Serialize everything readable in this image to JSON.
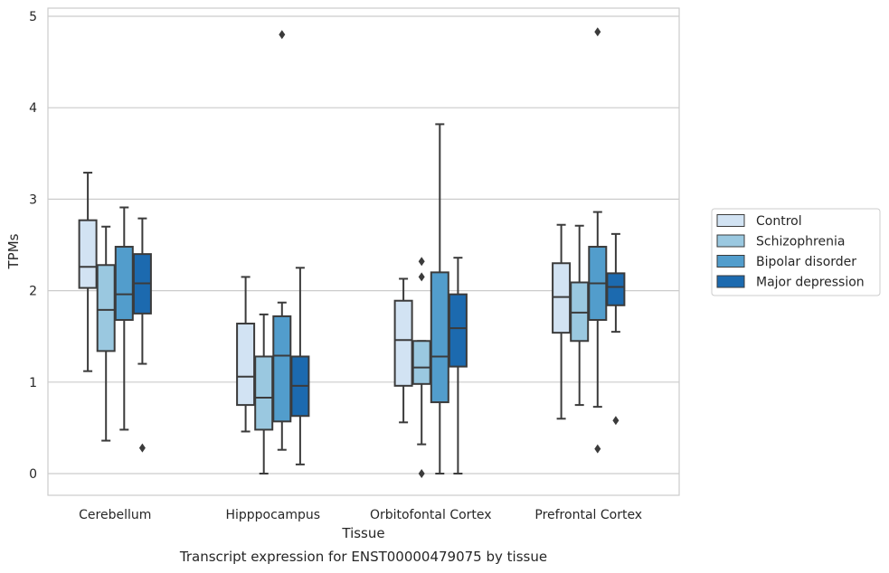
{
  "chart_data": {
    "type": "box",
    "caption": "Transcript expression for ENST00000479075 by tissue",
    "xlabel": "Tissue",
    "ylabel": "TPMs",
    "ylim": [
      -0.23,
      5.1
    ],
    "yticks": [
      0,
      1,
      2,
      3,
      4,
      5
    ],
    "grid": true,
    "legend_position": "right",
    "categories": [
      "Cerebellum",
      "Hipppocampus",
      "Orbitofontal Cortex",
      "Prefrontal Cortex"
    ],
    "series": [
      {
        "name": "Control",
        "color": "#d2e3f3",
        "boxes": [
          {
            "whisker_low": 1.12,
            "q1": 2.03,
            "median": 2.26,
            "q3": 2.77,
            "whisker_high": 3.29,
            "outliers": []
          },
          {
            "whisker_low": 0.46,
            "q1": 0.75,
            "median": 1.06,
            "q3": 1.64,
            "whisker_high": 2.15,
            "outliers": []
          },
          {
            "whisker_low": 0.56,
            "q1": 0.96,
            "median": 1.46,
            "q3": 1.89,
            "whisker_high": 2.13,
            "outliers": []
          },
          {
            "whisker_low": 0.6,
            "q1": 1.54,
            "median": 1.93,
            "q3": 2.3,
            "whisker_high": 2.72,
            "outliers": []
          }
        ]
      },
      {
        "name": "Schizophrenia",
        "color": "#9ac8e0",
        "boxes": [
          {
            "whisker_low": 0.36,
            "q1": 1.34,
            "median": 1.79,
            "q3": 2.28,
            "whisker_high": 2.7,
            "outliers": []
          },
          {
            "whisker_low": 0.0,
            "q1": 0.48,
            "median": 0.83,
            "q3": 1.28,
            "whisker_high": 1.74,
            "outliers": []
          },
          {
            "whisker_low": 0.32,
            "q1": 0.98,
            "median": 1.16,
            "q3": 1.45,
            "whisker_high": 1.45,
            "outliers": [
              2.32,
              2.15,
              0.0
            ]
          },
          {
            "whisker_low": 0.75,
            "q1": 1.45,
            "median": 1.76,
            "q3": 2.09,
            "whisker_high": 2.71,
            "outliers": []
          }
        ]
      },
      {
        "name": "Bipolar disorder",
        "color": "#529dcc",
        "boxes": [
          {
            "whisker_low": 0.48,
            "q1": 1.68,
            "median": 1.96,
            "q3": 2.48,
            "whisker_high": 2.91,
            "outliers": []
          },
          {
            "whisker_low": 0.26,
            "q1": 0.57,
            "median": 1.29,
            "q3": 1.72,
            "whisker_high": 1.87,
            "outliers": [
              4.8
            ]
          },
          {
            "whisker_low": 0.0,
            "q1": 0.78,
            "median": 1.28,
            "q3": 2.2,
            "whisker_high": 3.82,
            "outliers": []
          },
          {
            "whisker_low": 0.73,
            "q1": 1.68,
            "median": 2.08,
            "q3": 2.48,
            "whisker_high": 2.86,
            "outliers": [
              4.83,
              0.27
            ]
          }
        ]
      },
      {
        "name": "Major depression",
        "color": "#1c6aaf",
        "boxes": [
          {
            "whisker_low": 1.2,
            "q1": 1.75,
            "median": 2.08,
            "q3": 2.4,
            "whisker_high": 2.79,
            "outliers": [
              0.28
            ]
          },
          {
            "whisker_low": 0.1,
            "q1": 0.63,
            "median": 0.96,
            "q3": 1.28,
            "whisker_high": 2.25,
            "outliers": []
          },
          {
            "whisker_low": 0.0,
            "q1": 1.17,
            "median": 1.59,
            "q3": 1.96,
            "whisker_high": 2.36,
            "outliers": []
          },
          {
            "whisker_low": 1.55,
            "q1": 1.84,
            "median": 2.04,
            "q3": 2.19,
            "whisker_high": 2.62,
            "outliers": [
              0.58
            ]
          }
        ]
      }
    ]
  },
  "colors": {
    "grid": "#cccccc",
    "frame": "#cccccc",
    "lines": "#3b3b3b",
    "text": "#262626"
  }
}
